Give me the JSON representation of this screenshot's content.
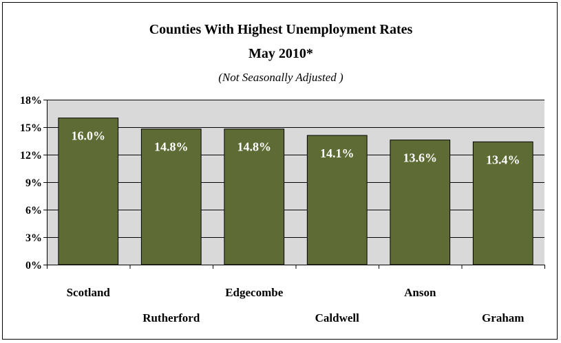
{
  "chart_data": {
    "type": "bar",
    "title": "Counties With Highest Unemployment Rates",
    "title_line2": "May 2010*",
    "subtitle": "(Not Seasonally Adjusted )",
    "categories": [
      "Scotland",
      "Rutherford",
      "Edgecombe",
      "Caldwell",
      "Anson",
      "Graham"
    ],
    "values": [
      16.0,
      14.8,
      14.8,
      14.1,
      13.6,
      13.4
    ],
    "value_labels": [
      "16.0%",
      "14.8%",
      "14.8%",
      "14.1%",
      "13.6%",
      "13.4%"
    ],
    "y_ticks": [
      0,
      3,
      6,
      9,
      12,
      15,
      18
    ],
    "y_tick_labels": [
      "0%",
      "3%",
      "6%",
      "9%",
      "12%",
      "15%",
      "18%"
    ],
    "ylim": [
      0,
      18
    ],
    "xlabel": "",
    "ylabel": "",
    "grid": true,
    "legend": "none",
    "colors": {
      "bar": "#5f6b35",
      "plot_bg": "#d9d9d9",
      "gridline": "#000000",
      "value_label": "#ffffff"
    }
  }
}
